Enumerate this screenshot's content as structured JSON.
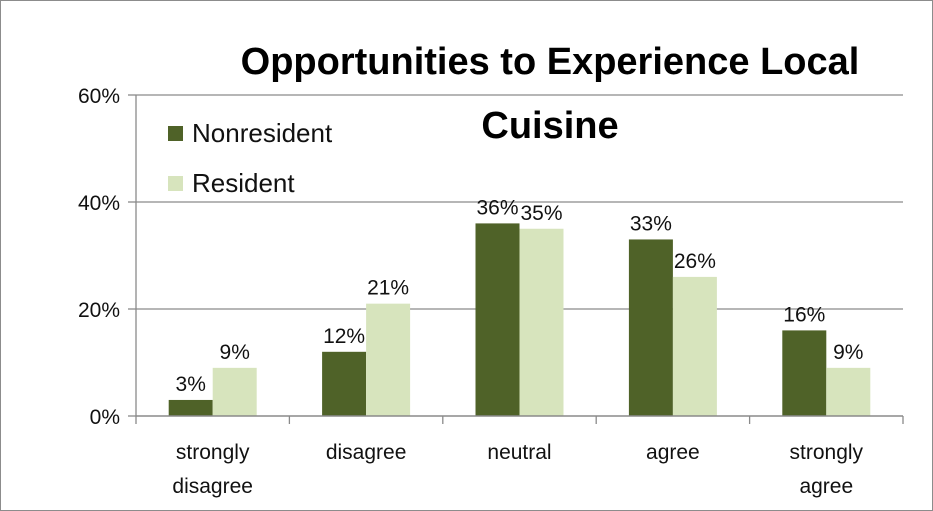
{
  "chart_data": {
    "type": "bar",
    "title": "Opportunities to Experience Local Cuisine",
    "categories": [
      [
        "strongly",
        "disagree"
      ],
      [
        "disagree"
      ],
      [
        "neutral"
      ],
      [
        "agree"
      ],
      [
        "strongly",
        "agree"
      ]
    ],
    "series": [
      {
        "name": "Nonresident",
        "values": [
          3,
          12,
          36,
          33,
          16
        ],
        "labels": [
          "3%",
          "12%",
          "36%",
          "33%",
          "16%"
        ],
        "color": "#4f6228"
      },
      {
        "name": "Resident",
        "values": [
          9,
          21,
          35,
          26,
          9
        ],
        "labels": [
          "9%",
          "21%",
          "35%",
          "26%",
          "9%"
        ],
        "color": "#d7e4bd"
      }
    ],
    "y_ticks": [
      0,
      20,
      40,
      60
    ],
    "y_tick_labels": [
      "0%",
      "20%",
      "40%",
      "60%"
    ],
    "ylim": [
      0,
      60
    ],
    "xlabel": "",
    "ylabel": "",
    "grid": true,
    "legend_position": "top-left"
  }
}
